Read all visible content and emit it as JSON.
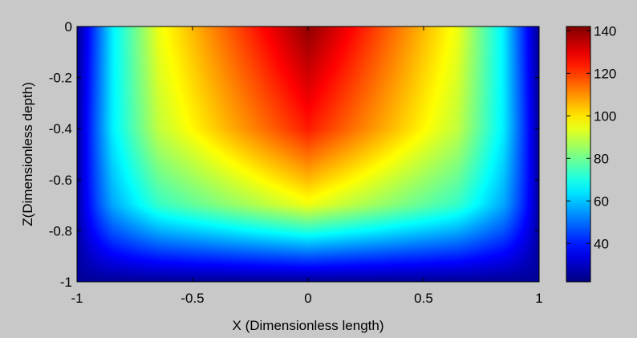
{
  "chart_data": {
    "type": "heatmap",
    "title": "",
    "xlabel": "X (Dimensionless length)",
    "ylabel": "Z(Dimensionless depth)",
    "xlim": [
      -1,
      1
    ],
    "ylim": [
      -1,
      0
    ],
    "x_ticks": [
      -1,
      -0.5,
      0,
      0.5,
      1
    ],
    "x_tick_labels": [
      "-1",
      "-0.5",
      "0",
      "0.5",
      "1"
    ],
    "y_ticks": [
      0,
      -0.2,
      -0.4,
      -0.6,
      -0.8,
      -1
    ],
    "y_tick_labels": [
      "0",
      "-0.2",
      "-0.4",
      "-0.6",
      "-0.8",
      "-1"
    ],
    "colormap": "jet",
    "colorbar": {
      "range": [
        22,
        142
      ],
      "ticks": [
        40,
        60,
        80,
        100,
        120,
        140
      ],
      "tick_labels": [
        "40",
        "60",
        "80",
        "100",
        "120",
        "140"
      ]
    },
    "grid": false,
    "sample_values": [
      {
        "x": 0,
        "z": 0,
        "value": 140
      },
      {
        "x": 0,
        "z": -0.4,
        "value": 124
      },
      {
        "x": 0,
        "z": -0.6,
        "value": 105
      },
      {
        "x": 0,
        "z": -0.7,
        "value": 95
      },
      {
        "x": 0,
        "z": -0.8,
        "value": 72
      },
      {
        "x": 0,
        "z": -0.9,
        "value": 48
      },
      {
        "x": 0,
        "z": -1,
        "value": 25
      },
      {
        "x": -0.65,
        "z": 0,
        "value": 95
      },
      {
        "x": 0.65,
        "z": 0,
        "value": 95
      },
      {
        "x": -0.85,
        "z": 0,
        "value": 65
      },
      {
        "x": 0.85,
        "z": 0,
        "value": 65
      },
      {
        "x": -1,
        "z": 0,
        "value": 25
      },
      {
        "x": 1,
        "z": 0,
        "value": 25
      }
    ]
  }
}
